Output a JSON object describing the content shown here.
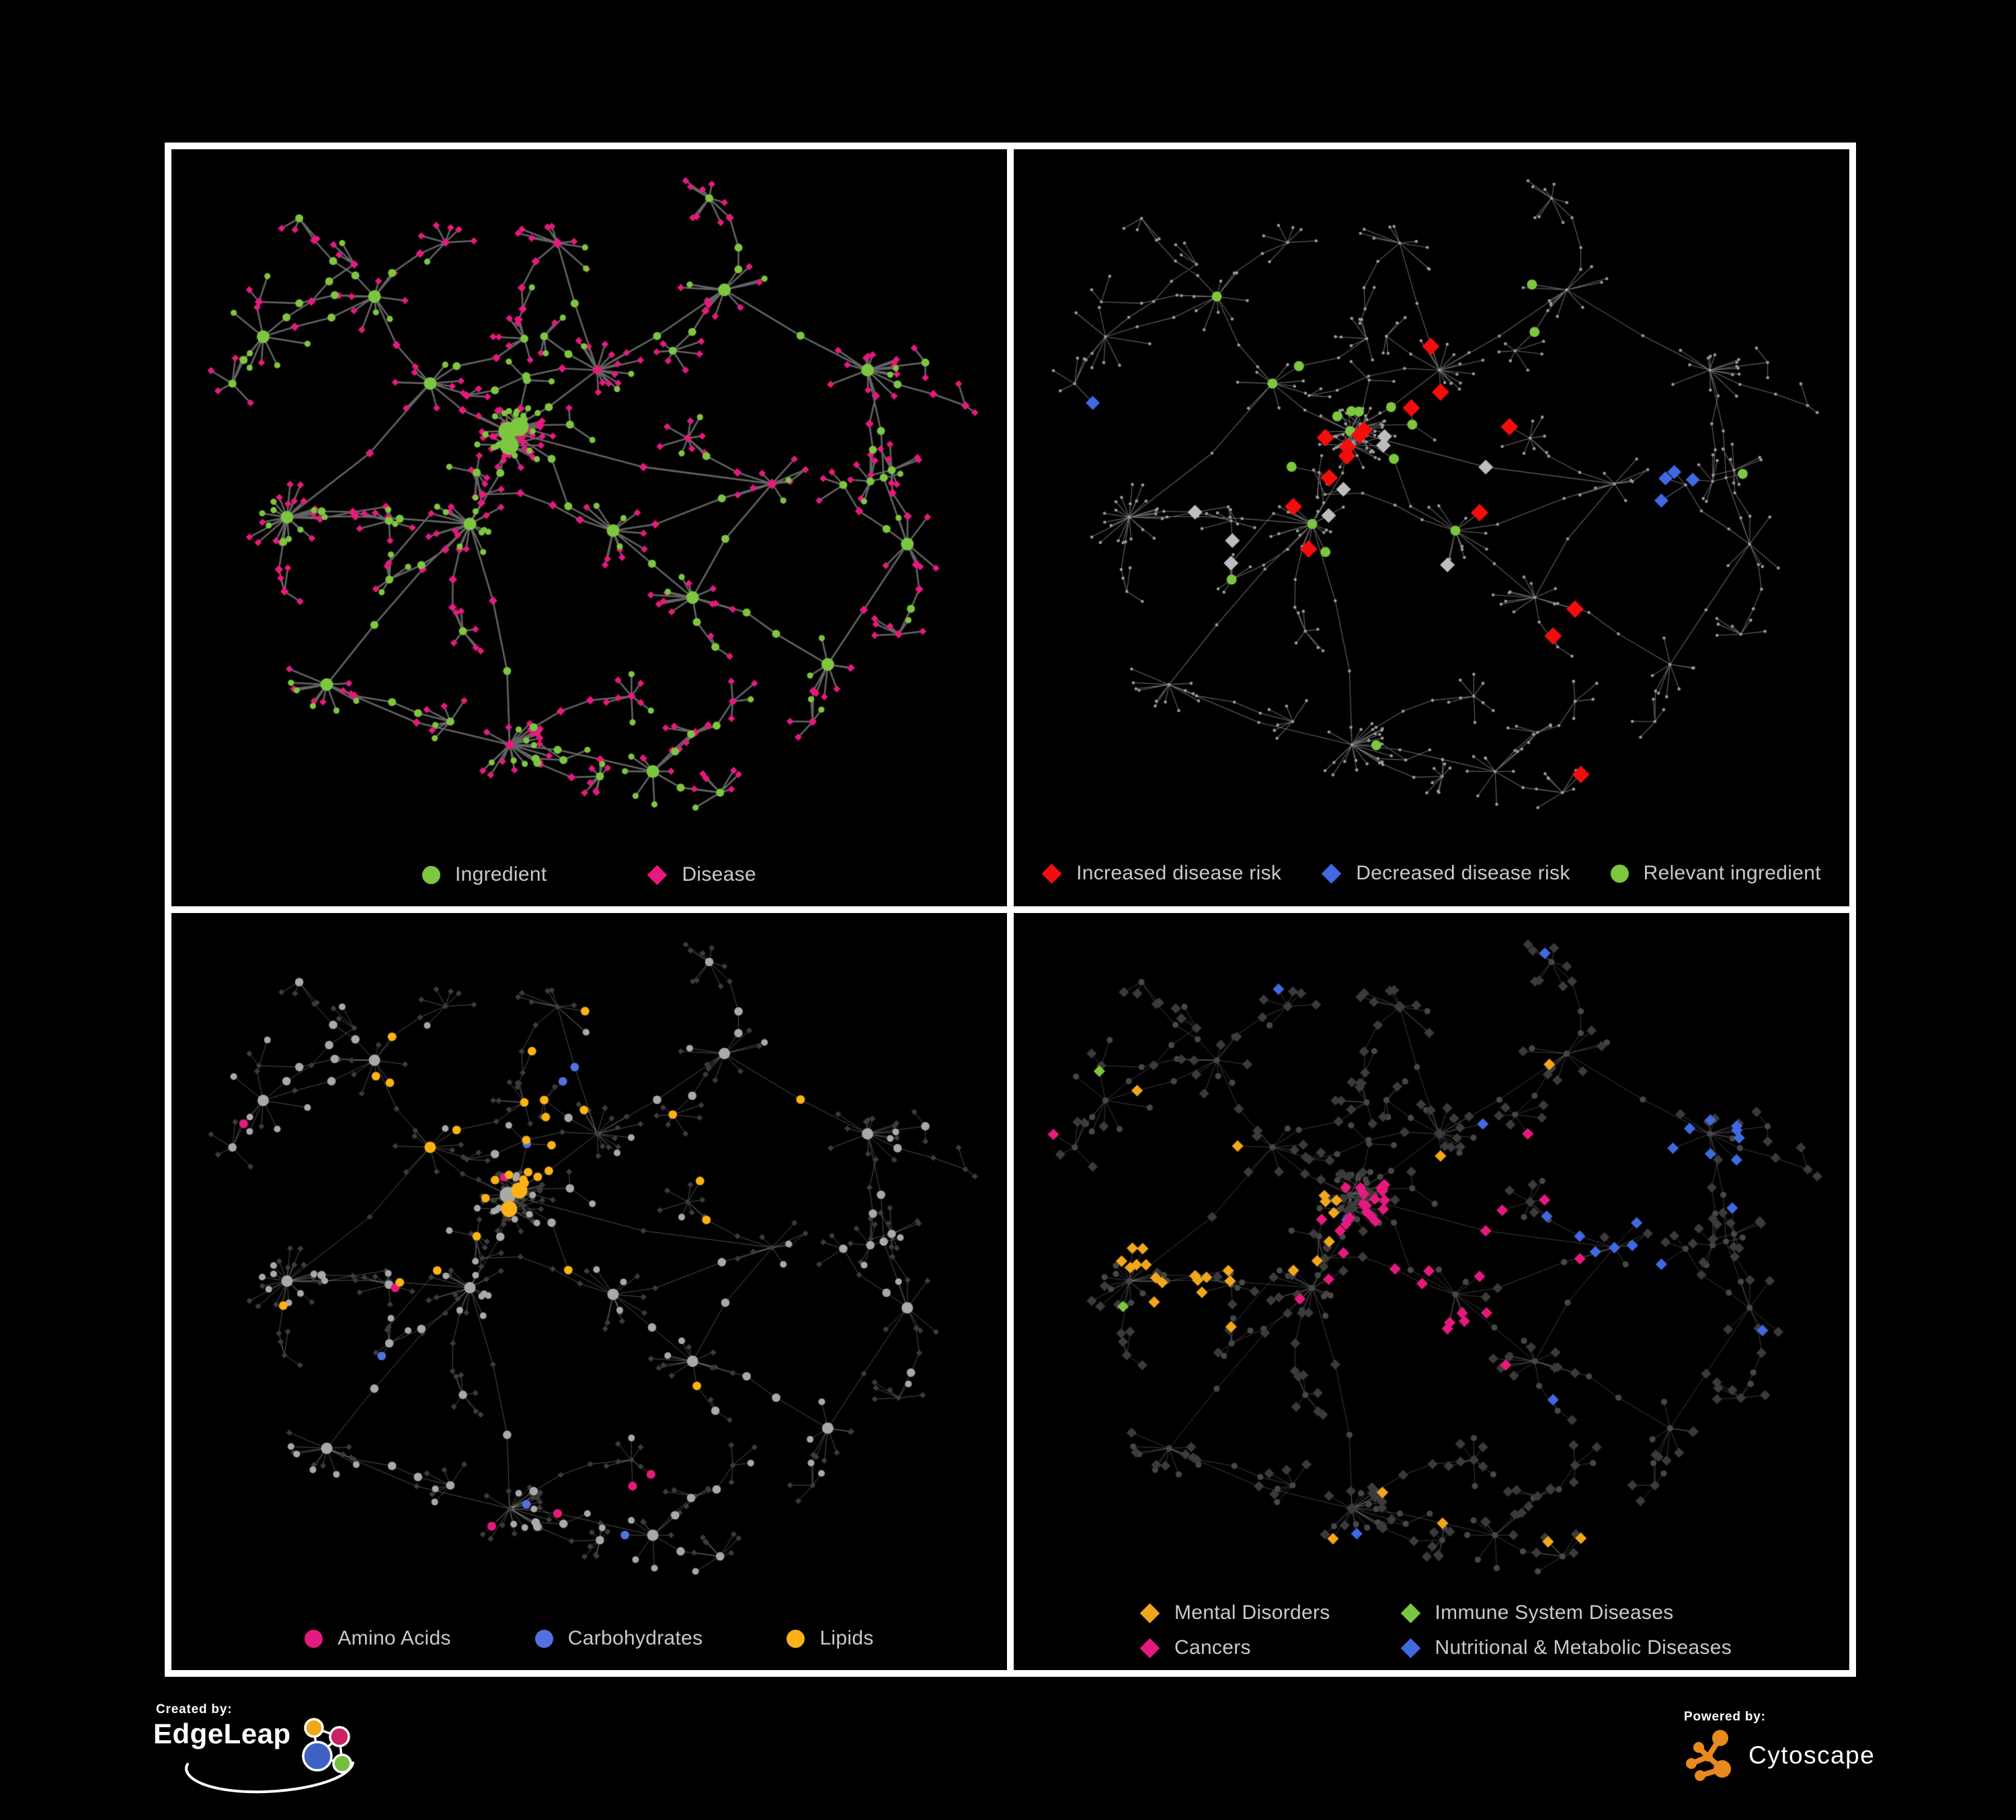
{
  "panels": [
    {
      "id": "ingredient-disease",
      "legend": [
        {
          "label": "Ingredient",
          "shape": "circle",
          "color": "#7DC63F"
        },
        {
          "label": "Disease",
          "shape": "diamond",
          "color": "#E6197E"
        }
      ]
    },
    {
      "id": "disease-risk",
      "legend": [
        {
          "label": "Increased disease risk",
          "shape": "diamond",
          "color": "#F50D0D"
        },
        {
          "label": "Decreased disease risk",
          "shape": "diamond",
          "color": "#4169E1"
        },
        {
          "label": "Relevant ingredient",
          "shape": "circle",
          "color": "#7DC63F"
        }
      ]
    },
    {
      "id": "ingredient-classes",
      "legend": [
        {
          "label": "Amino Acids",
          "shape": "circle",
          "color": "#E6197E"
        },
        {
          "label": "Carbohydrates",
          "shape": "circle",
          "color": "#5272E0"
        },
        {
          "label": "Lipids",
          "shape": "circle",
          "color": "#FCB116"
        }
      ]
    },
    {
      "id": "disease-classes",
      "legend": [
        {
          "label": "Mental Disorders",
          "shape": "diamond",
          "color": "#F2A71B"
        },
        {
          "label": "Immune System Diseases",
          "shape": "diamond",
          "color": "#7DC63F"
        },
        {
          "label": "Cancers",
          "shape": "diamond",
          "color": "#E6197E"
        },
        {
          "label": "Nutritional & Metabolic Diseases",
          "shape": "diamond",
          "color": "#4169E1"
        }
      ]
    }
  ],
  "footer": {
    "created_by": "Created by:",
    "edgeleap": "EdgeLeap",
    "powered_by": "Powered by:",
    "cytoscape": "Cytoscape"
  },
  "style": {
    "legend_text_color": "#C9C9C9",
    "panel_border_color": "#FFFFFF",
    "background": "#000000",
    "cytoscape_orange": "#E98A1F",
    "edgeleap_logo": {
      "orange": "#F2A71B",
      "magenta": "#C92163",
      "blue": "#3F62C4",
      "green": "#76BD3B"
    }
  },
  "network_style": {
    "panel1": {
      "edge": {
        "color": "#6E6E6E",
        "width": 2.6,
        "alpha": 0.9
      },
      "circle": "#7DC63F",
      "diamond": "#E6197E"
    },
    "panel2": {
      "edge": {
        "color": "#8A8A8A",
        "width": 1.1,
        "alpha": 0.75
      },
      "base": "#9B9B9B",
      "increased": "#F50D0D",
      "decreased": "#4169E1",
      "unchanged": "#BDBDBD",
      "relevant": "#7DC63F"
    },
    "panel3": {
      "edge": {
        "color": "#BBBBBB",
        "width": 1.0,
        "alpha": 0.42
      },
      "ingredient": "#A9A9A9",
      "disease": "#3C3C3C",
      "amino": "#E6197E",
      "carb": "#5272E0",
      "lipid": "#FCB116"
    },
    "panel4": {
      "edge": {
        "color": "#A5A5A5",
        "width": 1.0,
        "alpha": 0.36
      },
      "ingredient": "#474747",
      "disease": "#3B3B3B",
      "mental": "#F2A71B",
      "immune": "#7DC63F",
      "cancer": "#E6197E",
      "nutritional": "#4169E1"
    }
  }
}
